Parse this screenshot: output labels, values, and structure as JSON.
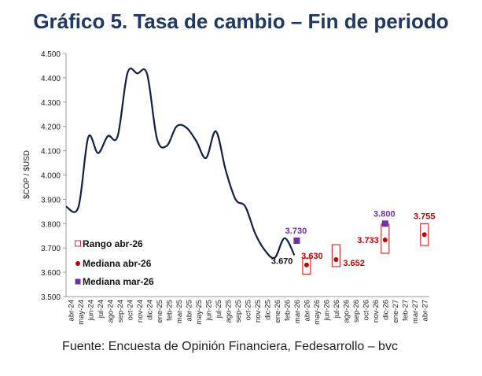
{
  "chart_data": {
    "type": "line",
    "title": "Gráfico 5. Tasa de cambio – Fin de periodo",
    "ylabel": "$COP / $USD",
    "xlabel": "",
    "ylim": [
      3500,
      4500
    ],
    "yticks": [
      "3.500",
      "3.600",
      "3.700",
      "3.800",
      "3.900",
      "4.000",
      "4.100",
      "4.200",
      "4.300",
      "4.400",
      "4.500"
    ],
    "categories": [
      "abr-24",
      "may-24",
      "jun-24",
      "jul-24",
      "ago-24",
      "sep-24",
      "oct-24",
      "nov-24",
      "dic-24",
      "ene-25",
      "feb-25",
      "mar-25",
      "abr-25",
      "may-25",
      "jun-25",
      "jul-25",
      "ago-25",
      "sep-25",
      "oct-25",
      "nov-25",
      "dic-25",
      "ene-26",
      "feb-26",
      "mar-26",
      "abr-26",
      "may-26",
      "jun-26",
      "jul-26",
      "ago-26",
      "sep-26",
      "oct-26",
      "nov-26",
      "dic-26",
      "ene-27",
      "feb-27",
      "mar-27",
      "abr-27"
    ],
    "history": [
      3870,
      3868,
      4155,
      4090,
      4160,
      4160,
      4420,
      4418,
      4415,
      4150,
      4120,
      4200,
      4195,
      4140,
      4070,
      4180,
      4020,
      3900,
      3870,
      3760,
      3690,
      3660,
      3740,
      3670
    ],
    "last_label": "3.670",
    "range_abr26": [
      {
        "category": "abr-26",
        "low": 3592,
        "high": 3658
      },
      {
        "category": "jul-26",
        "low": 3623,
        "high": 3713
      },
      {
        "category": "dic-26",
        "low": 3678,
        "high": 3798
      },
      {
        "category": "abr-27",
        "low": 3710,
        "high": 3800
      }
    ],
    "median_abr26": [
      {
        "category": "abr-26",
        "value": 3630,
        "label": "3.630"
      },
      {
        "category": "jul-26",
        "value": 3652,
        "label": "3.652"
      },
      {
        "category": "dic-26",
        "value": 3733,
        "label": "3.733"
      },
      {
        "category": "abr-27",
        "value": 3755,
        "label": "3.755"
      }
    ],
    "median_mar26": [
      {
        "category": "mar-26",
        "value": 3730,
        "label": "3.730"
      },
      {
        "category": "dic-26",
        "value": 3800,
        "label": "3.800"
      }
    ],
    "legend": [
      "Rango abr-26",
      "Mediana abr-26",
      "Mediana mar-26"
    ],
    "legend_position": "bottom-left",
    "grid": false,
    "colors": {
      "line": "#0f1f45",
      "range": "#d03030",
      "median_abr": "#c00000",
      "median_mar": "#7030a0",
      "title": "#1f3864"
    }
  },
  "footer": "Fuente: Encuesta de Opinión Financiera, Fedesarrollo – bvc"
}
